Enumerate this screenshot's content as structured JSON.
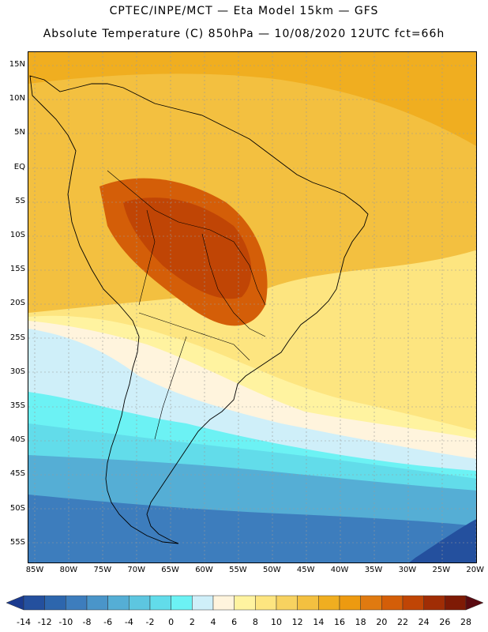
{
  "header": {
    "line1": "CPTEC/INPE/MCT —  Eta Model 15km — GFS",
    "line2": "Absolute Temperature (C) 850hPa — 10/08/2020 12UTC fct=66h"
  },
  "map": {
    "region": "South America",
    "lat_labels": [
      "15N",
      "10N",
      "5N",
      "EQ",
      "5S",
      "10S",
      "15S",
      "20S",
      "25S",
      "30S",
      "35S",
      "40S",
      "45S",
      "50S",
      "55S"
    ],
    "lon_labels": [
      "85W",
      "80W",
      "75W",
      "70W",
      "65W",
      "60W",
      "55W",
      "50W",
      "45W",
      "40W",
      "35W",
      "30W",
      "25W",
      "20W"
    ]
  },
  "colorbar": {
    "ticks": [
      "-14",
      "-12",
      "-10",
      "-8",
      "-6",
      "-4",
      "-2",
      "0",
      "2",
      "4",
      "6",
      "8",
      "10",
      "12",
      "14",
      "16",
      "18",
      "20",
      "22",
      "24",
      "26",
      "28"
    ],
    "colors": [
      "#1a3a8f",
      "#24509e",
      "#2d66ad",
      "#3d7dbd",
      "#4a95c9",
      "#55aed5",
      "#5dc6e0",
      "#62dcea",
      "#6cf2f4",
      "#cfeff9",
      "#fff4dd",
      "#fff3a0",
      "#fde580",
      "#f7d260",
      "#f3c040",
      "#f0ae20",
      "#ed9a10",
      "#e07a10",
      "#d45e08",
      "#c04505",
      "#a02d05",
      "#7e1a05",
      "#5a0a10"
    ]
  }
}
